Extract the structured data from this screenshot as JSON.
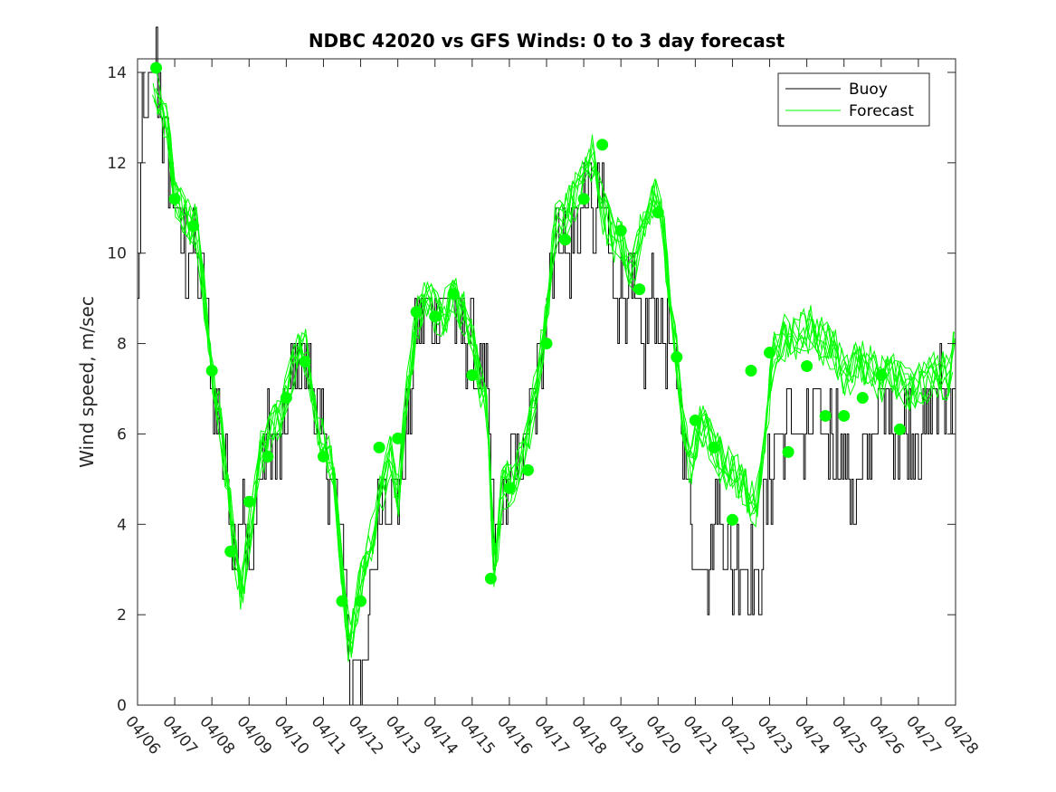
{
  "chart_data": {
    "type": "line",
    "title": "NDBC 42020 vs GFS Winds: 0 to 3 day forecast",
    "xlabel": "",
    "ylabel": "Wind speed, m/sec",
    "x_tick_labels": [
      "04/06",
      "04/07",
      "04/08",
      "04/09",
      "04/10",
      "04/11",
      "04/12",
      "04/13",
      "04/14",
      "04/15",
      "04/16",
      "04/17",
      "04/18",
      "04/19",
      "04/20",
      "04/21",
      "04/22",
      "04/23",
      "04/24",
      "04/25",
      "04/26",
      "04/27",
      "04/28"
    ],
    "y_ticks": [
      0,
      2,
      4,
      6,
      8,
      10,
      12,
      14
    ],
    "xlim_days": [
      0,
      22
    ],
    "ylim": [
      0,
      14.3
    ],
    "grid": false,
    "legend": {
      "position": "top-right",
      "entries": [
        "Buoy",
        "Forecast"
      ]
    },
    "colors": {
      "buoy": "#000000",
      "forecast": "#00ff00"
    },
    "buoy_keypoints": [
      [
        0.0,
        9.0
      ],
      [
        0.1,
        12.5
      ],
      [
        0.3,
        13.5
      ],
      [
        0.5,
        14.0
      ],
      [
        0.8,
        12.0
      ],
      [
        1.0,
        11.0
      ],
      [
        1.3,
        10.0
      ],
      [
        1.6,
        9.5
      ],
      [
        1.8,
        9.0
      ],
      [
        2.0,
        7.0
      ],
      [
        2.2,
        6.0
      ],
      [
        2.4,
        5.0
      ],
      [
        2.6,
        3.5
      ],
      [
        2.8,
        4.5
      ],
      [
        3.0,
        2.5
      ],
      [
        3.2,
        5.0
      ],
      [
        3.5,
        6.0
      ],
      [
        3.8,
        5.5
      ],
      [
        4.0,
        6.5
      ],
      [
        4.4,
        8.0
      ],
      [
        4.6,
        7.5
      ],
      [
        4.9,
        6.0
      ],
      [
        5.2,
        5.0
      ],
      [
        5.4,
        4.0
      ],
      [
        5.6,
        3.0
      ],
      [
        5.7,
        0.0
      ],
      [
        5.9,
        1.5
      ],
      [
        6.1,
        0.5
      ],
      [
        6.3,
        3.0
      ],
      [
        6.6,
        5.0
      ],
      [
        6.9,
        4.5
      ],
      [
        7.2,
        6.0
      ],
      [
        7.5,
        8.0
      ],
      [
        7.8,
        9.0
      ],
      [
        8.0,
        8.5
      ],
      [
        8.4,
        9.0
      ],
      [
        8.7,
        8.5
      ],
      [
        9.0,
        8.0
      ],
      [
        9.2,
        7.0
      ],
      [
        9.4,
        7.0
      ],
      [
        9.6,
        3.0
      ],
      [
        9.8,
        4.5
      ],
      [
        10.0,
        5.0
      ],
      [
        10.3,
        5.5
      ],
      [
        10.6,
        6.5
      ],
      [
        10.9,
        8.0
      ],
      [
        11.1,
        10.0
      ],
      [
        11.3,
        10.5
      ],
      [
        11.6,
        10.0
      ],
      [
        11.9,
        11.0
      ],
      [
        12.1,
        11.5
      ],
      [
        12.3,
        10.5
      ],
      [
        12.5,
        11.5
      ],
      [
        12.8,
        9.0
      ],
      [
        13.0,
        9.5
      ],
      [
        13.3,
        9.0
      ],
      [
        13.6,
        8.0
      ],
      [
        13.9,
        9.0
      ],
      [
        14.1,
        8.5
      ],
      [
        14.4,
        7.5
      ],
      [
        14.6,
        7.0
      ],
      [
        14.8,
        4.5
      ],
      [
        15.0,
        3.0
      ],
      [
        15.2,
        3.5
      ],
      [
        15.4,
        3.0
      ],
      [
        15.6,
        4.5
      ],
      [
        15.8,
        3.5
      ],
      [
        16.0,
        3.0
      ],
      [
        16.3,
        3.5
      ],
      [
        16.6,
        2.5
      ],
      [
        16.8,
        3.5
      ],
      [
        17.0,
        5.0
      ],
      [
        17.3,
        6.0
      ],
      [
        17.6,
        6.5
      ],
      [
        17.9,
        5.5
      ],
      [
        18.2,
        6.5
      ],
      [
        18.5,
        6.0
      ],
      [
        18.8,
        6.0
      ],
      [
        19.0,
        5.5
      ],
      [
        19.3,
        4.5
      ],
      [
        19.6,
        5.5
      ],
      [
        19.9,
        6.5
      ],
      [
        20.2,
        6.5
      ],
      [
        20.5,
        6.0
      ],
      [
        20.8,
        6.0
      ],
      [
        21.0,
        6.0
      ],
      [
        21.3,
        6.5
      ],
      [
        21.6,
        7.0
      ],
      [
        21.8,
        7.0
      ],
      [
        22.0,
        7.5
      ]
    ],
    "forecast_keypoints": [
      [
        0.4,
        13.8
      ],
      [
        0.6,
        13.5
      ],
      [
        0.8,
        12.8
      ],
      [
        1.0,
        11.3
      ],
      [
        1.3,
        10.8
      ],
      [
        1.6,
        10.5
      ],
      [
        1.8,
        9.0
      ],
      [
        2.0,
        7.5
      ],
      [
        2.2,
        6.5
      ],
      [
        2.4,
        5.0
      ],
      [
        2.6,
        3.5
      ],
      [
        2.8,
        2.5
      ],
      [
        3.0,
        3.8
      ],
      [
        3.3,
        5.5
      ],
      [
        3.6,
        6.0
      ],
      [
        3.9,
        6.5
      ],
      [
        4.2,
        7.5
      ],
      [
        4.4,
        8.2
      ],
      [
        4.6,
        7.5
      ],
      [
        4.9,
        6.0
      ],
      [
        5.2,
        5.5
      ],
      [
        5.4,
        4.0
      ],
      [
        5.6,
        2.0
      ],
      [
        5.7,
        1.2
      ],
      [
        5.9,
        2.3
      ],
      [
        6.2,
        3.3
      ],
      [
        6.5,
        4.5
      ],
      [
        6.8,
        5.5
      ],
      [
        7.0,
        4.5
      ],
      [
        7.2,
        6.5
      ],
      [
        7.5,
        8.5
      ],
      [
        7.8,
        9.0
      ],
      [
        8.0,
        8.6
      ],
      [
        8.3,
        8.7
      ],
      [
        8.6,
        9.0
      ],
      [
        9.0,
        8.2
      ],
      [
        9.2,
        7.2
      ],
      [
        9.4,
        6.5
      ],
      [
        9.6,
        2.8
      ],
      [
        9.8,
        4.8
      ],
      [
        10.1,
        5.0
      ],
      [
        10.4,
        5.5
      ],
      [
        10.7,
        7.0
      ],
      [
        11.0,
        8.5
      ],
      [
        11.2,
        10.5
      ],
      [
        11.5,
        10.8
      ],
      [
        11.8,
        11.3
      ],
      [
        12.1,
        12.0
      ],
      [
        12.3,
        12.2
      ],
      [
        12.5,
        11.0
      ],
      [
        12.8,
        10.3
      ],
      [
        13.0,
        10.5
      ],
      [
        13.3,
        9.5
      ],
      [
        13.6,
        10.8
      ],
      [
        13.9,
        11.3
      ],
      [
        14.1,
        11.0
      ],
      [
        14.3,
        9.0
      ],
      [
        14.5,
        7.7
      ],
      [
        14.7,
        6.0
      ],
      [
        14.9,
        5.2
      ],
      [
        15.1,
        6.3
      ],
      [
        15.3,
        6.0
      ],
      [
        15.6,
        5.5
      ],
      [
        15.9,
        5.2
      ],
      [
        16.2,
        5.0
      ],
      [
        16.5,
        4.5
      ],
      [
        16.7,
        4.5
      ],
      [
        16.9,
        6.0
      ],
      [
        17.1,
        7.8
      ],
      [
        17.3,
        8.2
      ],
      [
        17.6,
        8.0
      ],
      [
        17.9,
        8.3
      ],
      [
        18.2,
        8.3
      ],
      [
        18.5,
        8.0
      ],
      [
        18.8,
        7.8
      ],
      [
        19.1,
        7.2
      ],
      [
        19.4,
        7.7
      ],
      [
        19.7,
        7.5
      ],
      [
        20.0,
        7.2
      ],
      [
        20.3,
        7.3
      ],
      [
        20.6,
        7.1
      ],
      [
        20.9,
        7.0
      ],
      [
        21.2,
        7.2
      ],
      [
        21.5,
        7.3
      ],
      [
        21.8,
        7.3
      ],
      [
        22.0,
        8.0
      ]
    ],
    "forecast_markers": [
      [
        0.5,
        14.1
      ],
      [
        1.0,
        11.2
      ],
      [
        1.5,
        10.6
      ],
      [
        2.0,
        7.4
      ],
      [
        2.5,
        3.4
      ],
      [
        3.0,
        4.5
      ],
      [
        3.5,
        5.5
      ],
      [
        4.0,
        6.8
      ],
      [
        4.5,
        7.6
      ],
      [
        5.0,
        5.5
      ],
      [
        5.5,
        2.3
      ],
      [
        6.0,
        2.3
      ],
      [
        6.5,
        5.7
      ],
      [
        7.0,
        5.9
      ],
      [
        7.5,
        8.7
      ],
      [
        8.0,
        8.6
      ],
      [
        8.5,
        9.1
      ],
      [
        9.0,
        7.3
      ],
      [
        9.5,
        2.8
      ],
      [
        10.0,
        4.8
      ],
      [
        10.5,
        5.2
      ],
      [
        11.0,
        8.0
      ],
      [
        11.5,
        10.3
      ],
      [
        12.0,
        11.2
      ],
      [
        12.5,
        12.4
      ],
      [
        13.0,
        10.5
      ],
      [
        13.5,
        9.2
      ],
      [
        14.0,
        10.9
      ],
      [
        14.5,
        7.7
      ],
      [
        15.0,
        6.3
      ],
      [
        15.5,
        5.7
      ],
      [
        16.0,
        4.1
      ],
      [
        16.5,
        7.4
      ],
      [
        17.0,
        7.8
      ],
      [
        17.5,
        5.6
      ],
      [
        18.0,
        7.5
      ],
      [
        18.5,
        6.4
      ],
      [
        19.0,
        6.4
      ],
      [
        19.5,
        6.8
      ],
      [
        20.0,
        7.3
      ],
      [
        20.5,
        6.1
      ]
    ]
  }
}
